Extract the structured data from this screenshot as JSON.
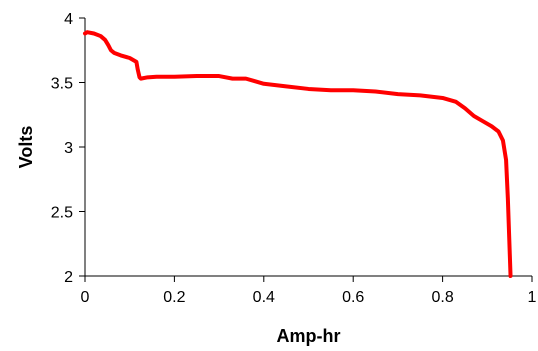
{
  "chart_data": {
    "type": "line",
    "title": "",
    "xlabel": "Amp-hr",
    "ylabel": "Volts",
    "xlim": [
      0,
      1
    ],
    "ylim": [
      2,
      4
    ],
    "xticks": [
      0,
      0.2,
      0.4,
      0.6,
      0.8,
      1
    ],
    "xtick_labels": [
      "0",
      "0.2",
      "0.4",
      "0.6",
      "0.8",
      "1"
    ],
    "yticks": [
      2,
      2.5,
      3,
      3.5,
      4
    ],
    "ytick_labels": [
      "2",
      "2.5",
      "3",
      "3.5",
      "4"
    ],
    "grid": false,
    "legend": "none",
    "series": [
      {
        "color": "#ff0000",
        "x": [
          0,
          0.005,
          0.02,
          0.035,
          0.045,
          0.052,
          0.058,
          0.065,
          0.08,
          0.1,
          0.115,
          0.118,
          0.122,
          0.125,
          0.14,
          0.16,
          0.2,
          0.25,
          0.3,
          0.33,
          0.36,
          0.38,
          0.4,
          0.45,
          0.5,
          0.55,
          0.58,
          0.6,
          0.65,
          0.7,
          0.75,
          0.8,
          0.83,
          0.85,
          0.87,
          0.89,
          0.91,
          0.925,
          0.935,
          0.942,
          0.946,
          0.949,
          0.951,
          0.952
        ],
        "y": [
          3.88,
          3.89,
          3.88,
          3.86,
          3.83,
          3.79,
          3.75,
          3.73,
          3.71,
          3.69,
          3.66,
          3.6,
          3.54,
          3.53,
          3.54,
          3.545,
          3.545,
          3.55,
          3.55,
          3.53,
          3.53,
          3.51,
          3.49,
          3.47,
          3.45,
          3.44,
          3.44,
          3.44,
          3.43,
          3.41,
          3.4,
          3.38,
          3.35,
          3.3,
          3.24,
          3.2,
          3.16,
          3.12,
          3.05,
          2.9,
          2.6,
          2.3,
          2.1,
          2.0
        ]
      }
    ]
  }
}
